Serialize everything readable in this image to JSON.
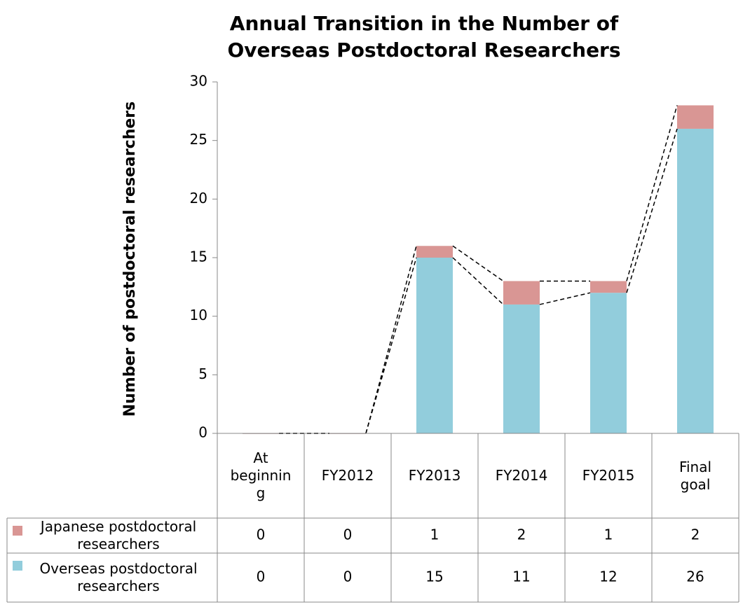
{
  "chart_data": {
    "type": "stacked_bar",
    "title": "Annual Transition in the Number of Overseas Postdoctoral Researchers",
    "y_label": "Number of postdoctoral researchers",
    "categories": [
      "At beginning",
      "FY2012",
      "FY2013",
      "FY2014",
      "FY2015",
      "Final goal"
    ],
    "series": [
      {
        "name": "Japanese postdoctoral researchers",
        "color": "#d99694",
        "values": [
          0,
          0,
          1,
          2,
          1,
          2
        ]
      },
      {
        "name": "Overseas postdoctoral researchers",
        "color": "#92cddc",
        "values": [
          0,
          0,
          15,
          11,
          12,
          26
        ]
      }
    ],
    "ylim": [
      0,
      30
    ],
    "yticks": [
      0,
      5,
      10,
      15,
      20,
      25,
      30
    ],
    "grid": false,
    "data_table": true
  }
}
